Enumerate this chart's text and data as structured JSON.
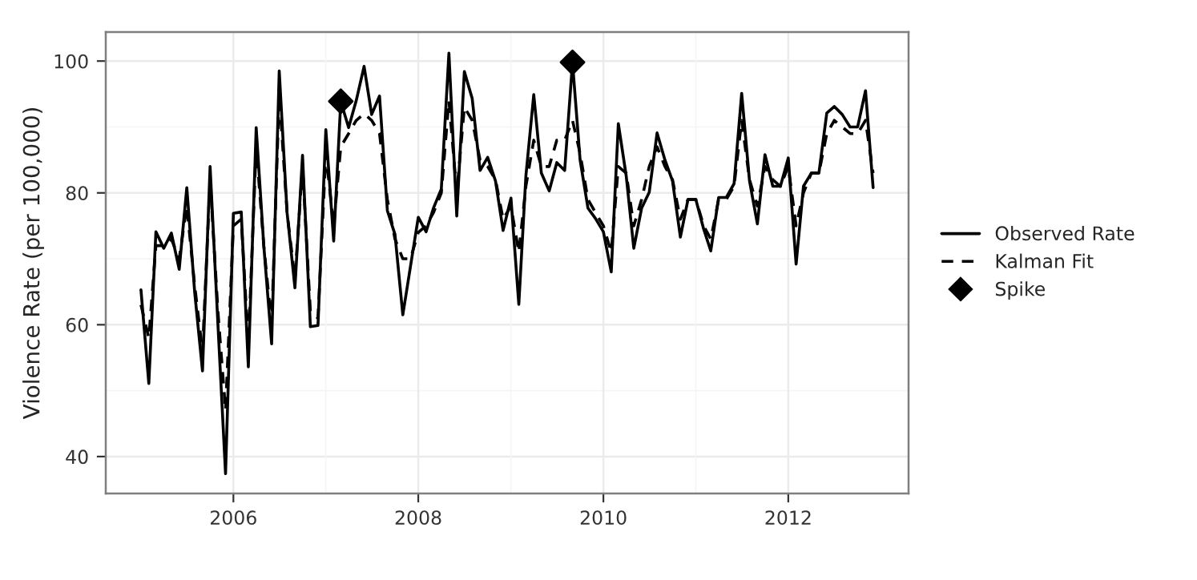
{
  "chart_data": {
    "type": "line",
    "ylabel": "Violence Rate (per 100,000)",
    "x": [
      "2005-01",
      "2005-02",
      "2005-03",
      "2005-04",
      "2005-05",
      "2005-06",
      "2005-07",
      "2005-08",
      "2005-09",
      "2005-10",
      "2005-11",
      "2005-12",
      "2006-01",
      "2006-02",
      "2006-03",
      "2006-04",
      "2006-05",
      "2006-06",
      "2006-07",
      "2006-08",
      "2006-09",
      "2006-10",
      "2006-11",
      "2006-12",
      "2007-01",
      "2007-02",
      "2007-03",
      "2007-04",
      "2007-05",
      "2007-06",
      "2007-07",
      "2007-08",
      "2007-09",
      "2007-10",
      "2007-11",
      "2007-12",
      "2008-01",
      "2008-02",
      "2008-03",
      "2008-04",
      "2008-05",
      "2008-06",
      "2008-07",
      "2008-08",
      "2008-09",
      "2008-10",
      "2008-11",
      "2008-12",
      "2009-01",
      "2009-02",
      "2009-03",
      "2009-04",
      "2009-05",
      "2009-06",
      "2009-07",
      "2009-08",
      "2009-09",
      "2009-10",
      "2009-11",
      "2009-12",
      "2010-01",
      "2010-02",
      "2010-03",
      "2010-04",
      "2010-05",
      "2010-06",
      "2010-07",
      "2010-08",
      "2010-09",
      "2010-10",
      "2010-11",
      "2010-12",
      "2011-01",
      "2011-02",
      "2011-03",
      "2011-04",
      "2011-05",
      "2011-06",
      "2011-07",
      "2011-08",
      "2011-09",
      "2011-10",
      "2011-11",
      "2011-12",
      "2012-01",
      "2012-02",
      "2012-03",
      "2012-04",
      "2012-05",
      "2012-06",
      "2012-07",
      "2012-08",
      "2012-09",
      "2012-10",
      "2012-11",
      "2012-12"
    ],
    "series": [
      {
        "name": "Observed Rate",
        "color": "#000000",
        "line_style": "solid",
        "values": [
          65.3,
          51.1,
          74.1,
          71.6,
          73.9,
          68.4,
          80.8,
          65,
          53.0,
          84.0,
          60,
          37.4,
          76.9,
          77.1,
          53.6,
          89.9,
          72,
          57.1,
          98.5,
          77,
          65.6,
          85.7,
          59.7,
          59.9,
          89.6,
          72.7,
          93.9,
          89.9,
          94,
          99.2,
          91.9,
          94.7,
          77.3,
          73.7,
          61.5,
          68.8,
          76.3,
          74.1,
          77.7,
          80.6,
          101.2,
          76.5,
          98.4,
          94.3,
          83.4,
          85.4,
          81.8,
          74.3,
          79.2,
          63.1,
          82.6,
          94.9,
          83.0,
          80.3,
          84.6,
          83.4,
          99.8,
          85,
          77.7,
          76.1,
          74.1,
          68.0,
          90.5,
          82.6,
          71.6,
          77.7,
          80.1,
          89.1,
          85.0,
          81.8,
          73.3,
          79.0,
          79.0,
          74.5,
          71.2,
          79.3,
          79.3,
          81.4,
          95.1,
          81.8,
          75.3,
          85.8,
          81.0,
          81.0,
          85.3,
          69.2,
          81.0,
          83.0,
          83.0,
          92.1,
          93.1,
          91.9,
          90.0,
          90.0,
          95.5,
          80.8
        ]
      },
      {
        "name": "Kalman Fit",
        "color": "#000000",
        "line_style": "dashed",
        "values": [
          63,
          58,
          72,
          72,
          73,
          70,
          78,
          66,
          56,
          82,
          62,
          47,
          75,
          76,
          57,
          87,
          72,
          60,
          95,
          77,
          67,
          84,
          62,
          61,
          86,
          75,
          87,
          89,
          91,
          92,
          91,
          89,
          79,
          73,
          70,
          70,
          74,
          75,
          77,
          80,
          94,
          80,
          93,
          91,
          85,
          84,
          82,
          76,
          78,
          71,
          81,
          88,
          84,
          84,
          88,
          88,
          91,
          86,
          79,
          77,
          75,
          71,
          84,
          83,
          75,
          79,
          84,
          87,
          84,
          82,
          76,
          79,
          79,
          75,
          73,
          79,
          79,
          81,
          91,
          82,
          78,
          84,
          82,
          81,
          84,
          75,
          80,
          83,
          83,
          89,
          91,
          90,
          89,
          89,
          91,
          83
        ]
      },
      {
        "name": "Spike",
        "type": "scatter",
        "color": "#000000",
        "marker": "diamond",
        "x": [
          "2007-03",
          "2009-09"
        ],
        "values": [
          93.9,
          99.8
        ]
      }
    ],
    "xlim": [
      "2004-08-15",
      "2013-04-20"
    ],
    "xticks": [
      {
        "value": "2006",
        "label": "2006"
      },
      {
        "value": "2008",
        "label": "2008"
      },
      {
        "value": "2010",
        "label": "2010"
      },
      {
        "value": "2012",
        "label": "2012"
      }
    ],
    "ylim": [
      34.4,
      104.4
    ],
    "yticks": [
      40,
      60,
      80,
      100
    ],
    "grid": true,
    "legend": "right"
  }
}
